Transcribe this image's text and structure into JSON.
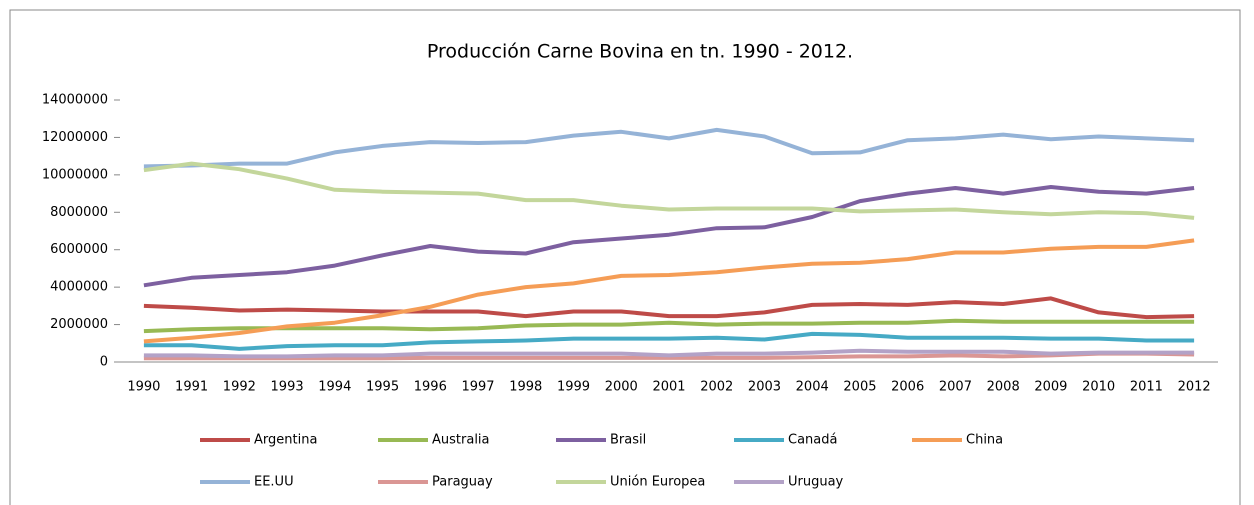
{
  "chart_data": {
    "type": "line",
    "title": "Producción Carne Bovina en tn. 1990 - 2012.",
    "categories": [
      "1990",
      "1991",
      "1992",
      "1993",
      "1994",
      "1995",
      "1996",
      "1997",
      "1998",
      "1999",
      "2000",
      "2001",
      "2002",
      "2003",
      "2004",
      "2005",
      "2006",
      "2007",
      "2008",
      "2009",
      "2010",
      "2011",
      "2012"
    ],
    "ylim": [
      0,
      14000000
    ],
    "yticks": [
      0,
      2000000,
      4000000,
      6000000,
      8000000,
      10000000,
      12000000,
      14000000
    ],
    "grid": false,
    "legend": "bottom",
    "series": [
      {
        "name": "Argentina",
        "color": "#be4b48",
        "values": [
          3000000,
          2900000,
          2750000,
          2800000,
          2750000,
          2700000,
          2700000,
          2700000,
          2450000,
          2700000,
          2700000,
          2450000,
          2450000,
          2650000,
          3050000,
          3100000,
          3050000,
          3200000,
          3100000,
          3400000,
          2650000,
          2400000,
          2450000
        ]
      },
      {
        "name": "Australia",
        "color": "#98b954",
        "values": [
          1650000,
          1750000,
          1800000,
          1800000,
          1800000,
          1800000,
          1750000,
          1800000,
          1950000,
          2000000,
          2000000,
          2100000,
          2000000,
          2050000,
          2050000,
          2100000,
          2100000,
          2200000,
          2150000,
          2150000,
          2150000,
          2150000,
          2150000
        ]
      },
      {
        "name": "Brasil",
        "color": "#7d60a0",
        "values": [
          4100000,
          4500000,
          4650000,
          4800000,
          5150000,
          5700000,
          6200000,
          5900000,
          5800000,
          6400000,
          6600000,
          6800000,
          7150000,
          7200000,
          7750000,
          8600000,
          9000000,
          9300000,
          9000000,
          9350000,
          9100000,
          9000000,
          9300000
        ]
      },
      {
        "name": "Canadá",
        "color": "#46aac5",
        "values": [
          900000,
          900000,
          700000,
          850000,
          900000,
          900000,
          1050000,
          1100000,
          1150000,
          1250000,
          1250000,
          1250000,
          1300000,
          1200000,
          1500000,
          1450000,
          1300000,
          1300000,
          1300000,
          1250000,
          1250000,
          1150000,
          1150000
        ]
      },
      {
        "name": "China",
        "color": "#f59d56",
        "values": [
          1100000,
          1300000,
          1550000,
          1900000,
          2100000,
          2500000,
          2950000,
          3600000,
          4000000,
          4200000,
          4600000,
          4650000,
          4800000,
          5050000,
          5250000,
          5300000,
          5500000,
          5850000,
          5850000,
          6050000,
          6150000,
          6150000,
          6500000
        ]
      },
      {
        "name": "EE.UU",
        "color": "#95b3d7",
        "values": [
          10450000,
          10500000,
          10600000,
          10600000,
          11200000,
          11550000,
          11750000,
          11700000,
          11750000,
          12100000,
          12300000,
          11950000,
          12400000,
          12050000,
          11150000,
          11200000,
          11850000,
          11950000,
          12150000,
          11900000,
          12050000,
          11950000,
          11850000
        ]
      },
      {
        "name": "Paraguay",
        "color": "#da9694",
        "values": [
          200000,
          200000,
          200000,
          200000,
          200000,
          200000,
          220000,
          220000,
          220000,
          220000,
          220000,
          220000,
          220000,
          220000,
          250000,
          300000,
          300000,
          350000,
          300000,
          350000,
          450000,
          450000,
          400000
        ]
      },
      {
        "name": "Unión Europea",
        "color": "#c3d69b",
        "values": [
          10250000,
          10600000,
          10300000,
          9800000,
          9200000,
          9100000,
          9050000,
          9000000,
          8650000,
          8650000,
          8350000,
          8150000,
          8200000,
          8200000,
          8200000,
          8050000,
          8100000,
          8150000,
          8000000,
          7900000,
          8000000,
          7950000,
          7700000
        ]
      },
      {
        "name": "Uruguay",
        "color": "#b3a2c7",
        "values": [
          350000,
          350000,
          300000,
          300000,
          350000,
          350000,
          450000,
          450000,
          450000,
          450000,
          450000,
          350000,
          450000,
          450000,
          500000,
          600000,
          550000,
          550000,
          550000,
          450000,
          500000,
          500000,
          500000
        ]
      }
    ]
  }
}
